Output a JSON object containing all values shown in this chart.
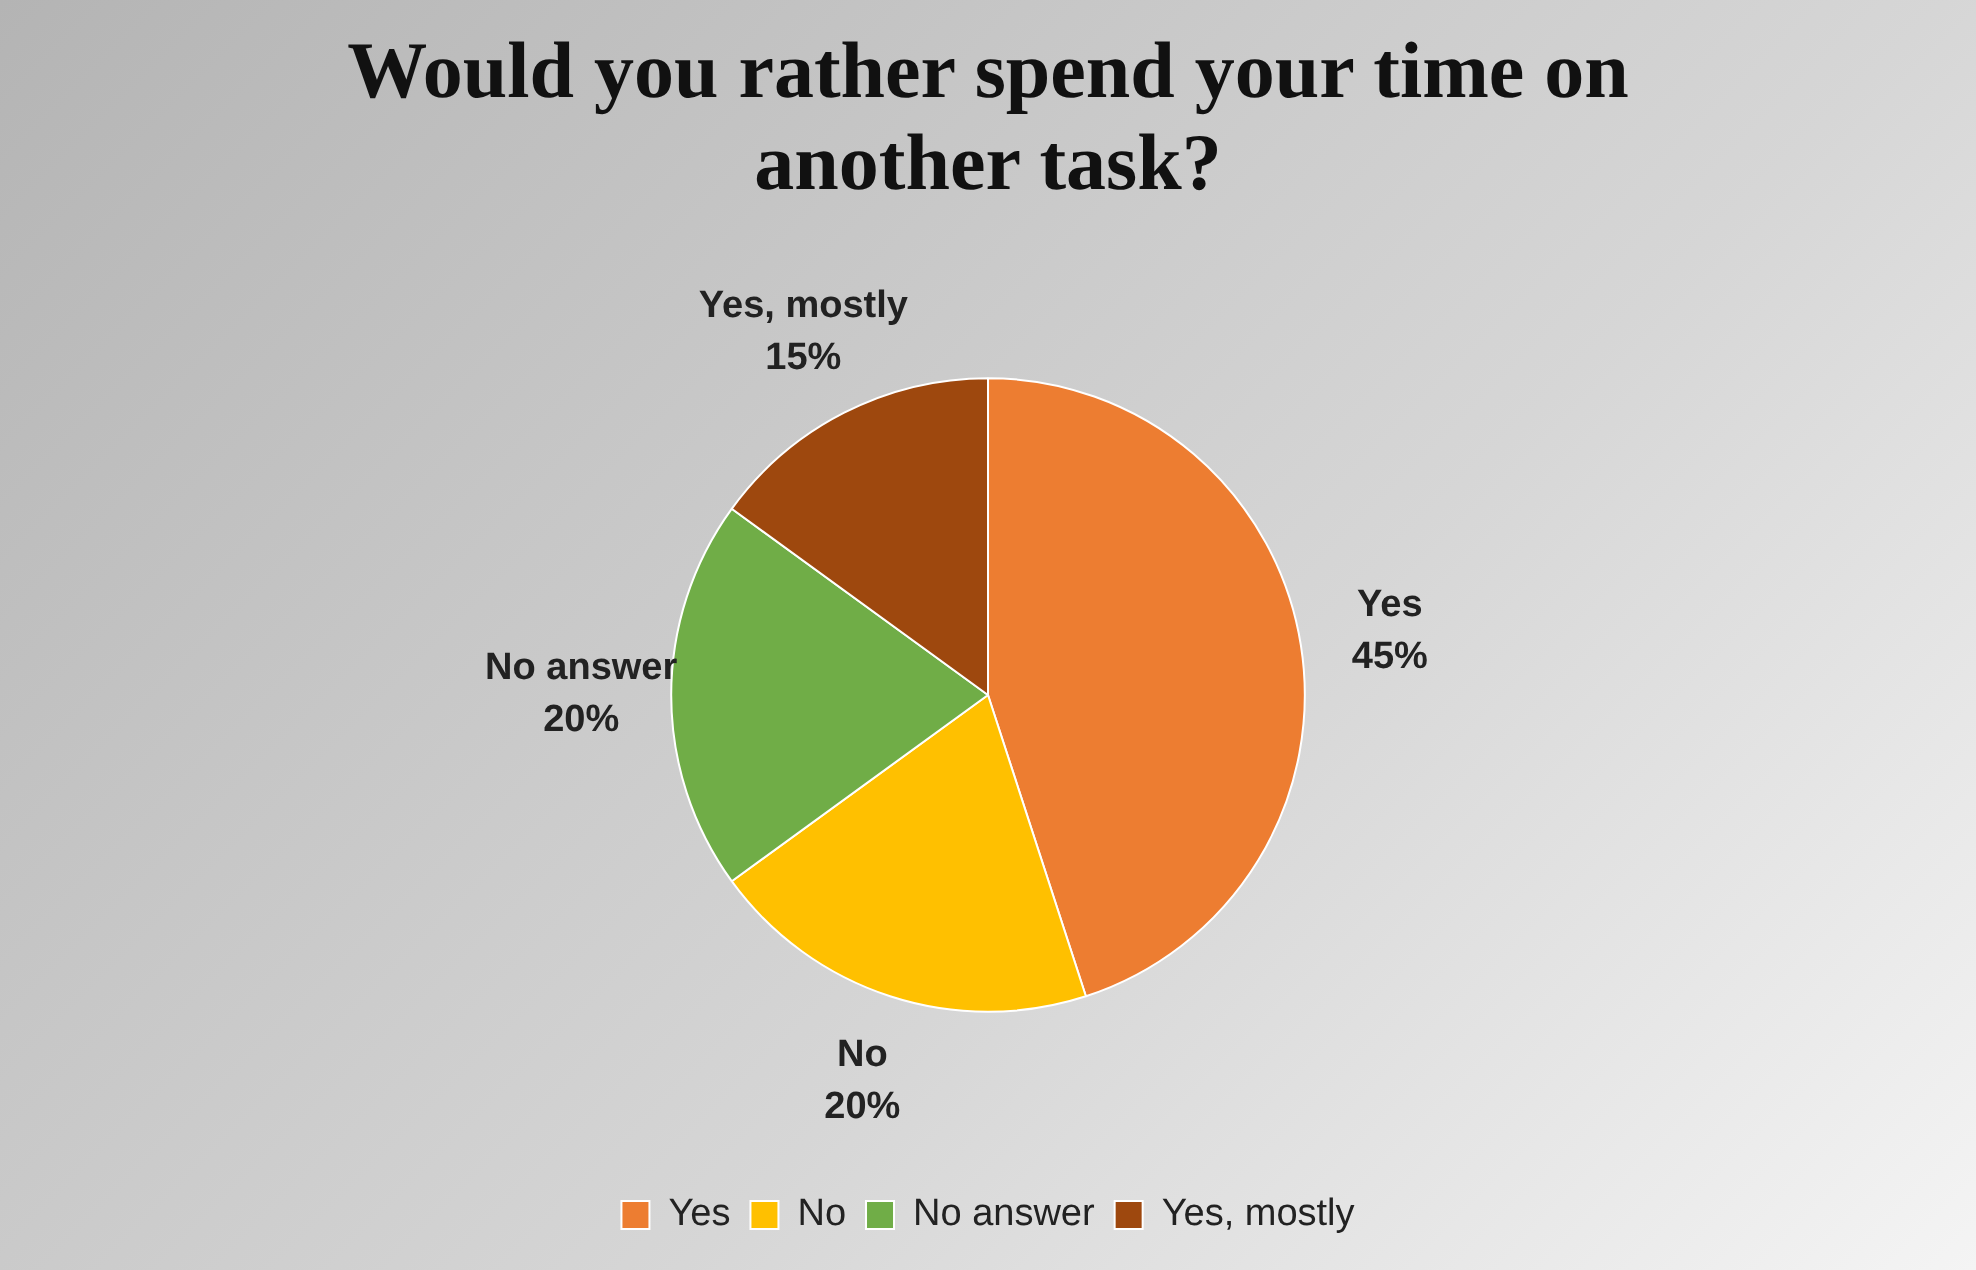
{
  "chart_data": {
    "type": "pie",
    "title": "Would you rather spend your time on another task?",
    "categories": [
      "Yes",
      "No",
      "No answer",
      "Yes, mostly"
    ],
    "values": [
      45,
      20,
      20,
      15
    ],
    "colors": [
      "#ed7d31",
      "#ffc000",
      "#70ad47",
      "#9e480e"
    ],
    "value_labels": [
      "45%",
      "20%",
      "20%",
      "15%"
    ],
    "legend": "bottom"
  }
}
